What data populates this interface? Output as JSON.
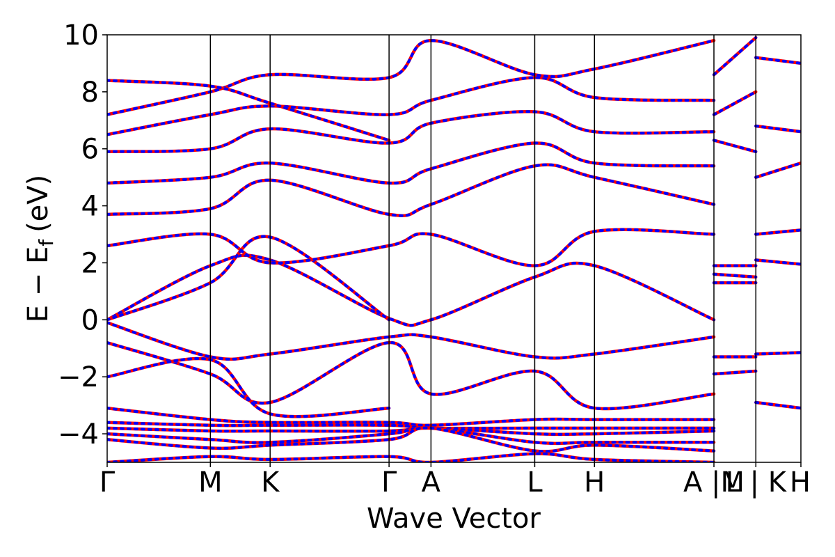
{
  "chart_data": {
    "type": "line",
    "title": "",
    "xlabel": "Wave Vector",
    "ylabel": "E − E",
    "ylabel_sub": "f",
    "ylabel_unit": "(eV)",
    "ylim": [
      -5,
      10
    ],
    "yticks": [
      -4,
      -2,
      0,
      2,
      4,
      6,
      8,
      10
    ],
    "ytick_labels": [
      "−4",
      "−2",
      "0",
      "2",
      "4",
      "6",
      "8",
      "10"
    ],
    "xlim": [
      0,
      6.62
    ],
    "kpoints": [
      {
        "label": "Γ",
        "x": 0.0
      },
      {
        "label": "M",
        "x": 0.985
      },
      {
        "label": "K",
        "x": 1.555
      },
      {
        "label": "Γ",
        "x": 2.69
      },
      {
        "label": "A",
        "x": 3.09
      },
      {
        "label": "L",
        "x": 4.08
      },
      {
        "label": "H",
        "x": 4.65
      },
      {
        "label": "A |M",
        "x": 5.79
      },
      {
        "label": "L | K",
        "x": 6.19
      },
      {
        "label": "H",
        "x": 6.62
      }
    ],
    "series": [
      {
        "color": "#ff0000",
        "style": "solid",
        "x": [
          0,
          0.985,
          1.555,
          2.69,
          3.09,
          4.08,
          4.65,
          5.79
        ],
        "y": [
          0.0,
          1.9,
          2.1,
          0.05,
          0.0,
          1.5,
          1.9,
          0.0
        ]
      },
      {
        "color": "#ff0000",
        "style": "solid",
        "x": [
          0,
          0.985,
          1.555,
          2.69
        ],
        "y": [
          0.0,
          1.3,
          2.9,
          0.0
        ]
      },
      {
        "color": "#ff0000",
        "style": "solid",
        "x": [
          0,
          0.985,
          1.555,
          2.69,
          3.09,
          4.08,
          4.65,
          5.79
        ],
        "y": [
          2.6,
          3.0,
          2.0,
          2.6,
          3.0,
          1.9,
          3.1,
          3.0
        ]
      },
      {
        "color": "#ff0000",
        "style": "solid",
        "x": [
          0,
          0.985,
          1.555,
          2.69,
          3.09,
          4.08,
          4.65,
          5.79
        ],
        "y": [
          3.7,
          3.9,
          4.9,
          3.7,
          4.05,
          5.4,
          5.0,
          4.05
        ]
      },
      {
        "color": "#ff0000",
        "style": "solid",
        "x": [
          0,
          0.985,
          1.555,
          2.69,
          3.09,
          4.08,
          4.65,
          5.79
        ],
        "y": [
          4.8,
          5.0,
          5.5,
          4.8,
          5.3,
          6.2,
          5.5,
          5.4
        ]
      },
      {
        "color": "#ff0000",
        "style": "solid",
        "x": [
          0,
          0.985,
          1.555,
          2.69,
          3.09,
          4.08,
          4.65,
          5.79
        ],
        "y": [
          5.9,
          6.0,
          6.7,
          6.2,
          6.9,
          7.3,
          6.6,
          6.6
        ]
      },
      {
        "color": "#ff0000",
        "style": "solid",
        "x": [
          0,
          0.985,
          1.555,
          2.69,
          3.09,
          4.08,
          4.65,
          5.79
        ],
        "y": [
          6.5,
          7.2,
          7.5,
          7.2,
          7.7,
          8.5,
          7.8,
          7.7
        ]
      },
      {
        "color": "#ff0000",
        "style": "solid",
        "x": [
          0,
          0.985,
          1.555,
          2.69,
          3.09,
          4.08,
          4.65,
          5.79
        ],
        "y": [
          7.2,
          8.0,
          8.6,
          8.5,
          9.8,
          8.6,
          8.8,
          9.8
        ]
      },
      {
        "color": "#ff0000",
        "style": "solid",
        "x": [
          0,
          0.985,
          1.555,
          2.69
        ],
        "y": [
          8.4,
          8.2,
          7.6,
          6.3
        ]
      },
      {
        "color": "#ff0000",
        "style": "solid",
        "x": [
          0,
          0.985,
          1.555,
          2.69,
          3.09,
          4.08,
          4.65,
          5.79
        ],
        "y": [
          -0.1,
          -1.3,
          -1.2,
          -0.6,
          -0.6,
          -1.3,
          -1.2,
          -0.6
        ]
      },
      {
        "color": "#ff0000",
        "style": "solid",
        "x": [
          0,
          0.985,
          1.555,
          2.69,
          3.09,
          4.08,
          4.65,
          5.79
        ],
        "y": [
          -0.8,
          -1.9,
          -2.9,
          -0.8,
          -2.6,
          -1.8,
          -3.1,
          -2.6
        ]
      },
      {
        "color": "#ff0000",
        "style": "solid",
        "x": [
          0,
          0.985,
          1.555,
          2.69
        ],
        "y": [
          -2.0,
          -1.4,
          -3.3,
          -3.1
        ]
      },
      {
        "color": "#ff0000",
        "style": "solid",
        "x": [
          0,
          0.985,
          1.555,
          2.69,
          3.09,
          4.08,
          4.65,
          5.79
        ],
        "y": [
          -3.1,
          -3.5,
          -3.6,
          -3.6,
          -3.7,
          -3.5,
          -3.5,
          -3.5
        ]
      },
      {
        "color": "#ff0000",
        "style": "solid",
        "x": [
          0,
          0.985,
          1.555,
          2.69,
          3.09,
          4.08,
          4.65,
          5.79
        ],
        "y": [
          -3.6,
          -3.7,
          -3.7,
          -3.7,
          -3.8,
          -3.8,
          -3.8,
          -3.8
        ]
      },
      {
        "color": "#ff0000",
        "style": "solid",
        "x": [
          0,
          0.985,
          1.555,
          2.69,
          3.09,
          4.08,
          4.65,
          5.79
        ],
        "y": [
          -3.8,
          -3.9,
          -3.9,
          -3.9,
          -3.8,
          -4.0,
          -4.0,
          -3.9
        ]
      },
      {
        "color": "#ff0000",
        "style": "solid",
        "x": [
          0,
          0.985,
          1.555,
          2.69,
          3.09,
          4.08,
          4.65,
          5.79
        ],
        "y": [
          -4.0,
          -4.2,
          -4.3,
          -4.0,
          -3.8,
          -4.3,
          -4.3,
          -4.3
        ]
      },
      {
        "color": "#ff0000",
        "style": "solid",
        "x": [
          0,
          0.985,
          1.555,
          2.69,
          3.09,
          4.08,
          4.65,
          5.79
        ],
        "y": [
          -4.2,
          -4.5,
          -4.4,
          -4.2,
          -3.8,
          -4.6,
          -4.4,
          -4.6
        ]
      },
      {
        "color": "#ff0000",
        "style": "solid",
        "x": [
          0,
          0.985,
          1.555,
          2.69,
          3.09,
          4.08,
          4.65,
          5.79
        ],
        "y": [
          -5.0,
          -4.8,
          -4.9,
          -4.8,
          -5.0,
          -4.7,
          -4.9,
          -5.0
        ]
      },
      {
        "color": "#ff0000",
        "style": "solid",
        "x": [
          5.79,
          6.19
        ],
        "y": [
          1.9,
          1.9
        ]
      },
      {
        "color": "#ff0000",
        "style": "solid",
        "x": [
          5.79,
          6.19
        ],
        "y": [
          1.6,
          1.5
        ]
      },
      {
        "color": "#ff0000",
        "style": "solid",
        "x": [
          5.79,
          6.19
        ],
        "y": [
          1.3,
          1.3
        ]
      },
      {
        "color": "#ff0000",
        "style": "solid",
        "x": [
          5.79,
          6.19
        ],
        "y": [
          -1.3,
          -1.3
        ]
      },
      {
        "color": "#ff0000",
        "style": "solid",
        "x": [
          5.79,
          6.19
        ],
        "y": [
          -1.9,
          -1.8
        ]
      },
      {
        "color": "#ff0000",
        "style": "solid",
        "x": [
          5.79,
          6.19
        ],
        "y": [
          8.6,
          9.9
        ]
      },
      {
        "color": "#ff0000",
        "style": "solid",
        "x": [
          5.79,
          6.19
        ],
        "y": [
          7.2,
          8.0
        ]
      },
      {
        "color": "#ff0000",
        "style": "solid",
        "x": [
          5.79,
          6.19
        ],
        "y": [
          6.3,
          5.9
        ]
      },
      {
        "color": "#ff0000",
        "style": "solid",
        "x": [
          6.19,
          6.62
        ],
        "y": [
          3.0,
          3.15
        ]
      },
      {
        "color": "#ff0000",
        "style": "solid",
        "x": [
          6.19,
          6.62
        ],
        "y": [
          2.1,
          1.95
        ]
      },
      {
        "color": "#ff0000",
        "style": "solid",
        "x": [
          6.19,
          6.62
        ],
        "y": [
          -1.2,
          -1.15
        ]
      },
      {
        "color": "#ff0000",
        "style": "solid",
        "x": [
          6.19,
          6.62
        ],
        "y": [
          -2.9,
          -3.1
        ]
      },
      {
        "color": "#ff0000",
        "style": "solid",
        "x": [
          6.19,
          6.62
        ],
        "y": [
          5.0,
          5.5
        ]
      },
      {
        "color": "#ff0000",
        "style": "solid",
        "x": [
          6.19,
          6.62
        ],
        "y": [
          6.8,
          6.6
        ]
      },
      {
        "color": "#ff0000",
        "style": "solid",
        "x": [
          6.19,
          6.62
        ],
        "y": [
          9.2,
          9.0
        ]
      }
    ]
  }
}
